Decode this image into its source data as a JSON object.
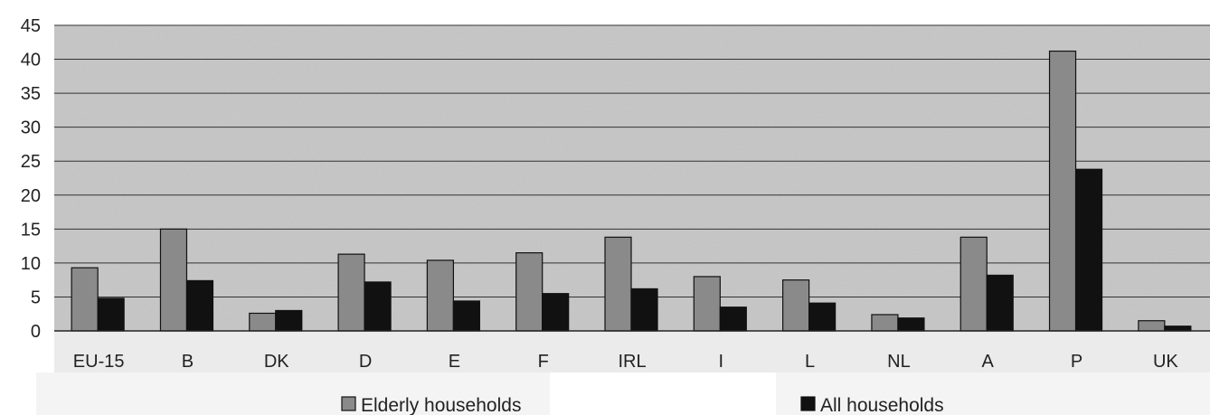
{
  "chart_data": {
    "type": "bar",
    "title": "",
    "xlabel": "",
    "ylabel": "",
    "categories": [
      "EU-15",
      "B",
      "DK",
      "D",
      "E",
      "F",
      "IRL",
      "I",
      "L",
      "NL",
      "A",
      "P",
      "UK"
    ],
    "series": [
      {
        "name": "Elderly households",
        "values": [
          9.3,
          15.0,
          2.6,
          11.3,
          10.4,
          11.5,
          13.8,
          8.0,
          7.5,
          2.4,
          13.8,
          41.2,
          1.5
        ]
      },
      {
        "name": "All households",
        "values": [
          4.8,
          7.4,
          3.0,
          7.2,
          4.4,
          5.5,
          6.2,
          3.5,
          4.1,
          1.9,
          8.2,
          23.8,
          0.7
        ]
      }
    ],
    "ylim": [
      0,
      45
    ],
    "yticks": [
      0,
      5,
      10,
      15,
      20,
      25,
      30,
      35,
      40,
      45
    ],
    "grid": true,
    "legend_position": "bottom",
    "colors": {
      "elderly": "#8a8a8a",
      "all": "#111111",
      "plot_bg": "#c8c8c8"
    }
  }
}
